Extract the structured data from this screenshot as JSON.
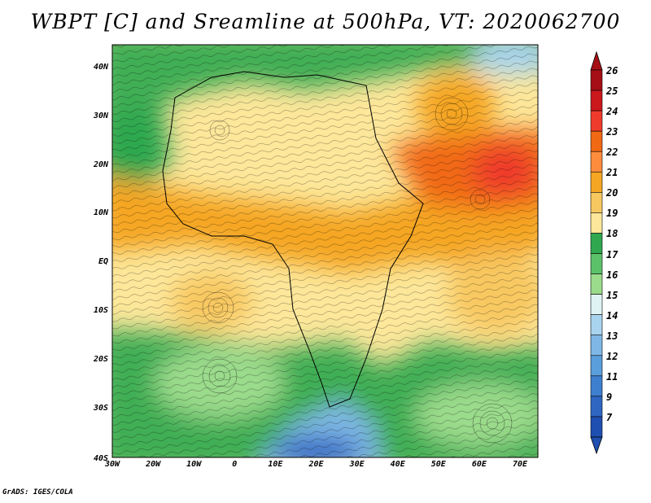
{
  "title": "WBPT [C] and Sreamline at 500hPa, VT: 2020062700",
  "lat_labels": [
    "40N",
    "30N",
    "20N",
    "10N",
    "EQ",
    "10S",
    "20S",
    "30S",
    "40S"
  ],
  "lon_labels": [
    "30W",
    "20W",
    "10W",
    "0",
    "10E",
    "20E",
    "30E",
    "40E",
    "50E",
    "60E",
    "70E"
  ],
  "colorbar": {
    "labels": [
      "26",
      "25",
      "24",
      "23",
      "22",
      "21",
      "20",
      "19",
      "18",
      "17",
      "16",
      "15",
      "14",
      "13",
      "12",
      "11",
      "9",
      "7"
    ],
    "colors": [
      "#a50f15",
      "#cb181d",
      "#ef3b2c",
      "#f16913",
      "#fd8d3c",
      "#f5a623",
      "#f8c860",
      "#fde79a",
      "#2fa84f",
      "#5cc26a",
      "#9bdb8c",
      "#dff3f5",
      "#a8d4ef",
      "#7fb8e6",
      "#5a9edb",
      "#3f7fcf",
      "#2e66c2",
      "#1f4fb0"
    ]
  },
  "footer": "GrADS: IGES/COLA"
}
